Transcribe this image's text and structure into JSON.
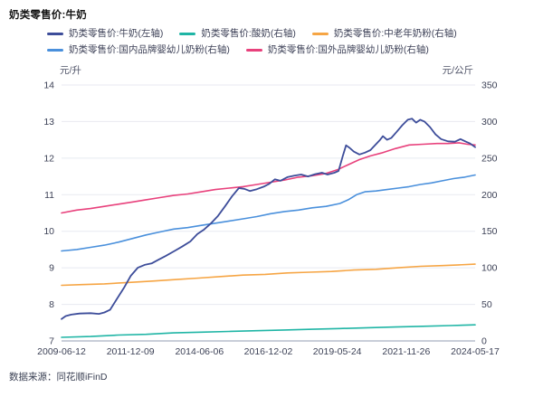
{
  "page": {
    "title": "奶类零售价:牛奶",
    "source_note": "数据来源：同花顺iFinD"
  },
  "chart_data": {
    "type": "line",
    "title": "奶类零售价:牛奶",
    "grid": true,
    "legend_position": "top-left",
    "left_axis": {
      "unit": "元/升",
      "min": 7,
      "max": 14,
      "ticks": [
        14,
        13,
        12,
        11,
        10,
        9,
        8,
        7
      ]
    },
    "right_axis": {
      "unit": "元/公斤",
      "min": 0,
      "max": 350,
      "ticks": [
        350,
        300,
        250,
        200,
        150,
        100,
        50,
        0
      ]
    },
    "x_axis": {
      "tick_labels": [
        "2009-06-12",
        "2011-12-09",
        "2014-06-06",
        "2016-12-02",
        "2019-05-24",
        "2021-11-26",
        "2024-05-17"
      ],
      "start_year": 2009.45,
      "end_year": 2024.38
    },
    "series": [
      {
        "name": "奶类零售价:牛奶(左轴)",
        "axis": "left",
        "color": "#3D4D9A",
        "points": [
          [
            2009.45,
            7.6
          ],
          [
            2009.6,
            7.68
          ],
          [
            2009.8,
            7.72
          ],
          [
            2010.1,
            7.75
          ],
          [
            2010.5,
            7.76
          ],
          [
            2010.8,
            7.74
          ],
          [
            2011.0,
            7.78
          ],
          [
            2011.2,
            7.85
          ],
          [
            2011.45,
            8.15
          ],
          [
            2011.7,
            8.45
          ],
          [
            2011.95,
            8.78
          ],
          [
            2012.2,
            9.0
          ],
          [
            2012.45,
            9.08
          ],
          [
            2012.7,
            9.12
          ],
          [
            2012.95,
            9.22
          ],
          [
            2013.2,
            9.32
          ],
          [
            2013.5,
            9.45
          ],
          [
            2013.8,
            9.58
          ],
          [
            2014.1,
            9.72
          ],
          [
            2014.35,
            9.92
          ],
          [
            2014.6,
            10.05
          ],
          [
            2014.85,
            10.22
          ],
          [
            2015.1,
            10.42
          ],
          [
            2015.35,
            10.68
          ],
          [
            2015.6,
            10.95
          ],
          [
            2015.85,
            11.18
          ],
          [
            2016.05,
            11.16
          ],
          [
            2016.25,
            11.1
          ],
          [
            2016.5,
            11.15
          ],
          [
            2016.75,
            11.22
          ],
          [
            2016.95,
            11.3
          ],
          [
            2017.15,
            11.42
          ],
          [
            2017.35,
            11.38
          ],
          [
            2017.6,
            11.48
          ],
          [
            2017.85,
            11.52
          ],
          [
            2018.1,
            11.55
          ],
          [
            2018.35,
            11.5
          ],
          [
            2018.6,
            11.56
          ],
          [
            2018.85,
            11.6
          ],
          [
            2019.05,
            11.55
          ],
          [
            2019.3,
            11.6
          ],
          [
            2019.45,
            11.65
          ],
          [
            2019.6,
            12.05
          ],
          [
            2019.72,
            12.35
          ],
          [
            2019.85,
            12.28
          ],
          [
            2020.0,
            12.18
          ],
          [
            2020.2,
            12.1
          ],
          [
            2020.4,
            12.15
          ],
          [
            2020.6,
            12.22
          ],
          [
            2020.8,
            12.38
          ],
          [
            2020.95,
            12.5
          ],
          [
            2021.05,
            12.6
          ],
          [
            2021.2,
            12.5
          ],
          [
            2021.35,
            12.55
          ],
          [
            2021.55,
            12.72
          ],
          [
            2021.75,
            12.9
          ],
          [
            2021.95,
            13.05
          ],
          [
            2022.1,
            13.08
          ],
          [
            2022.25,
            12.97
          ],
          [
            2022.4,
            13.05
          ],
          [
            2022.55,
            13.0
          ],
          [
            2022.75,
            12.85
          ],
          [
            2022.95,
            12.65
          ],
          [
            2023.15,
            12.52
          ],
          [
            2023.4,
            12.46
          ],
          [
            2023.65,
            12.45
          ],
          [
            2023.85,
            12.52
          ],
          [
            2024.05,
            12.45
          ],
          [
            2024.2,
            12.4
          ],
          [
            2024.38,
            12.3
          ]
        ]
      },
      {
        "name": "奶类零售价:酸奶(右轴)",
        "axis": "right",
        "color": "#1FB5A5",
        "points": [
          [
            2009.45,
            5
          ],
          [
            2010.5,
            6
          ],
          [
            2011.5,
            8
          ],
          [
            2012.5,
            9
          ],
          [
            2013.5,
            11
          ],
          [
            2014.5,
            12
          ],
          [
            2015.5,
            13
          ],
          [
            2016.5,
            14
          ],
          [
            2017.5,
            15
          ],
          [
            2018.5,
            16
          ],
          [
            2019.5,
            17
          ],
          [
            2020.5,
            18
          ],
          [
            2021.5,
            19
          ],
          [
            2022.5,
            20
          ],
          [
            2023.5,
            21
          ],
          [
            2024.38,
            22
          ]
        ]
      },
      {
        "name": "奶类零售价:中老年奶粉(右轴)",
        "axis": "right",
        "color": "#F6A544",
        "points": [
          [
            2009.45,
            76
          ],
          [
            2010.2,
            77
          ],
          [
            2011.0,
            78
          ],
          [
            2011.9,
            80
          ],
          [
            2012.8,
            82
          ],
          [
            2013.6,
            84
          ],
          [
            2014.4,
            86
          ],
          [
            2015.2,
            88
          ],
          [
            2016.0,
            90
          ],
          [
            2016.8,
            91
          ],
          [
            2017.6,
            93
          ],
          [
            2018.4,
            94
          ],
          [
            2019.2,
            95
          ],
          [
            2020.0,
            97
          ],
          [
            2020.8,
            98
          ],
          [
            2021.6,
            100
          ],
          [
            2022.4,
            102
          ],
          [
            2023.2,
            103
          ],
          [
            2023.8,
            104
          ],
          [
            2024.38,
            105
          ]
        ]
      },
      {
        "name": "奶类零售价:国内品牌婴幼儿奶粉(右轴)",
        "axis": "right",
        "color": "#4A90DC",
        "points": [
          [
            2009.45,
            123
          ],
          [
            2010.0,
            125
          ],
          [
            2010.5,
            128
          ],
          [
            2011.0,
            131
          ],
          [
            2011.5,
            135
          ],
          [
            2012.0,
            140
          ],
          [
            2012.5,
            145
          ],
          [
            2013.0,
            149
          ],
          [
            2013.5,
            153
          ],
          [
            2014.0,
            155
          ],
          [
            2014.5,
            158
          ],
          [
            2015.0,
            161
          ],
          [
            2015.5,
            164
          ],
          [
            2016.0,
            167
          ],
          [
            2016.5,
            170
          ],
          [
            2017.0,
            174
          ],
          [
            2017.5,
            177
          ],
          [
            2018.0,
            179
          ],
          [
            2018.5,
            182
          ],
          [
            2019.0,
            184
          ],
          [
            2019.5,
            188
          ],
          [
            2019.8,
            193
          ],
          [
            2020.1,
            200
          ],
          [
            2020.4,
            204
          ],
          [
            2020.8,
            205
          ],
          [
            2021.2,
            207
          ],
          [
            2021.6,
            209
          ],
          [
            2022.0,
            211
          ],
          [
            2022.4,
            214
          ],
          [
            2022.8,
            216
          ],
          [
            2023.2,
            219
          ],
          [
            2023.6,
            222
          ],
          [
            2024.0,
            224
          ],
          [
            2024.38,
            227
          ]
        ]
      },
      {
        "name": "奶类零售价:国外品牌婴幼儿奶粉(右轴)",
        "axis": "right",
        "color": "#E8417C",
        "points": [
          [
            2009.45,
            175
          ],
          [
            2010.0,
            179
          ],
          [
            2010.5,
            181
          ],
          [
            2011.0,
            184
          ],
          [
            2011.5,
            187
          ],
          [
            2012.0,
            190
          ],
          [
            2012.5,
            193
          ],
          [
            2013.0,
            196
          ],
          [
            2013.5,
            199
          ],
          [
            2014.0,
            201
          ],
          [
            2014.5,
            204
          ],
          [
            2015.0,
            207
          ],
          [
            2015.5,
            209
          ],
          [
            2016.0,
            211
          ],
          [
            2016.5,
            214
          ],
          [
            2017.0,
            217
          ],
          [
            2017.5,
            220
          ],
          [
            2018.0,
            224
          ],
          [
            2018.5,
            226
          ],
          [
            2019.0,
            229
          ],
          [
            2019.4,
            234
          ],
          [
            2019.8,
            241
          ],
          [
            2020.2,
            248
          ],
          [
            2020.6,
            253
          ],
          [
            2021.0,
            257
          ],
          [
            2021.5,
            263
          ],
          [
            2022.0,
            268
          ],
          [
            2022.5,
            269
          ],
          [
            2023.0,
            270
          ],
          [
            2023.4,
            270
          ],
          [
            2023.8,
            271
          ],
          [
            2024.1,
            269
          ],
          [
            2024.38,
            268
          ]
        ]
      }
    ],
    "style": {
      "grid_color": "#E8EAF1",
      "axis_line_color": "#A8B0C0",
      "tick_text_color": "#3d4257"
    }
  }
}
